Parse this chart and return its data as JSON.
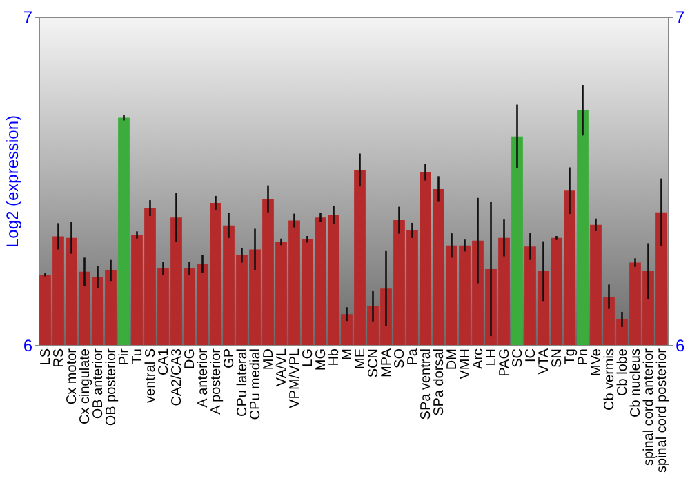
{
  "chart_data": {
    "type": "bar",
    "ylabel": "Log2 (expression)",
    "categories": [
      "LS",
      "RS",
      "Cx motor",
      "Cx cingulate",
      "OB anterior",
      "OB posterior",
      "Pir",
      "Tu",
      "ventral S",
      "CA1",
      "CA2/CA3",
      "DG",
      "A anterior",
      "A posterior",
      "GP",
      "CPu lateral",
      "CPu medial",
      "MD",
      "VA/VL",
      "VPM/VPL",
      "LG",
      "MG",
      "Hb",
      "M",
      "ME",
      "SCN",
      "MPA",
      "SO",
      "Pa",
      "SPa ventral",
      "SPa dorsal",
      "DM",
      "VMH",
      "Arc",
      "LH",
      "PAG",
      "SC",
      "IC",
      "VTA",
      "SN",
      "Tg",
      "Pn",
      "MVe",
      "Cb vermis",
      "Cb lobe",
      "Cb nucleus",
      "spinal cord anterior",
      "spinal cord posterior"
    ],
    "values": [
      6.214,
      6.331,
      6.326,
      6.223,
      6.207,
      6.227,
      6.692,
      6.335,
      6.417,
      6.233,
      6.388,
      6.234,
      6.247,
      6.433,
      6.364,
      6.273,
      6.291,
      6.445,
      6.314,
      6.379,
      6.322,
      6.388,
      6.397,
      6.094,
      6.533,
      6.118,
      6.172,
      6.38,
      6.349,
      6.526,
      6.475,
      6.303,
      6.303,
      6.318,
      6.231,
      6.326,
      6.635,
      6.3,
      6.225,
      6.326,
      6.47,
      6.715,
      6.366,
      6.147,
      6.078,
      6.251,
      6.225,
      6.404
    ],
    "errors": [
      0.005,
      0.04,
      0.048,
      0.043,
      0.034,
      0.032,
      0.008,
      0.011,
      0.024,
      0.019,
      0.075,
      0.02,
      0.028,
      0.021,
      0.038,
      0.022,
      0.063,
      0.041,
      0.01,
      0.021,
      0.01,
      0.014,
      0.027,
      0.021,
      0.05,
      0.046,
      0.114,
      0.041,
      0.023,
      0.025,
      0.039,
      0.037,
      0.018,
      0.13,
      0.204,
      0.056,
      0.097,
      0.041,
      0.091,
      0.006,
      0.071,
      0.077,
      0.019,
      0.037,
      0.023,
      0.013,
      0.085,
      0.103
    ],
    "colors": [
      "#b52a2a",
      "#b52a2a",
      "#b52a2a",
      "#b52a2a",
      "#b52a2a",
      "#b52a2a",
      "#3cad3c",
      "#b52a2a",
      "#b52a2a",
      "#b52a2a",
      "#b52a2a",
      "#b52a2a",
      "#b52a2a",
      "#b52a2a",
      "#b52a2a",
      "#b52a2a",
      "#b52a2a",
      "#b52a2a",
      "#b52a2a",
      "#b52a2a",
      "#b52a2a",
      "#b52a2a",
      "#b52a2a",
      "#b52a2a",
      "#b52a2a",
      "#b52a2a",
      "#b52a2a",
      "#b52a2a",
      "#b52a2a",
      "#b52a2a",
      "#b52a2a",
      "#b52a2a",
      "#b52a2a",
      "#b52a2a",
      "#b52a2a",
      "#b52a2a",
      "#3cad3c",
      "#b52a2a",
      "#b52a2a",
      "#b52a2a",
      "#b52a2a",
      "#3cad3c",
      "#b52a2a",
      "#b52a2a",
      "#b52a2a",
      "#b52a2a",
      "#b52a2a",
      "#b52a2a"
    ],
    "ylim": [
      6,
      7
    ],
    "yticks": [
      6,
      7
    ],
    "y2lim": [
      6,
      7
    ],
    "y2ticks": [
      6,
      7
    ],
    "grid": false
  }
}
